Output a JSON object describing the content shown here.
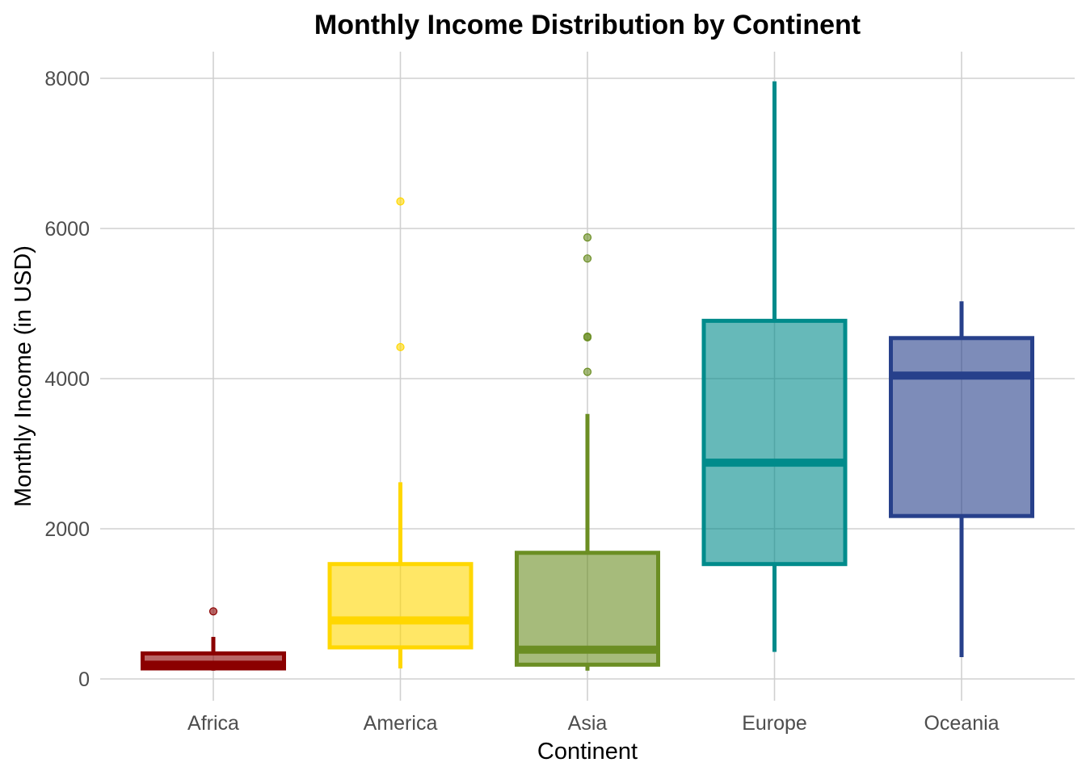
{
  "chart_data": {
    "type": "boxplot",
    "title": "Monthly Income Distribution by Continent",
    "xlabel": "Continent",
    "ylabel": "Monthly Income (in USD)",
    "ylim": [
      -250,
      8350
    ],
    "yticks": [
      0,
      2000,
      4000,
      6000,
      8000
    ],
    "grid": true,
    "legend": "none",
    "categories": [
      "Africa",
      "America",
      "Asia",
      "Europe",
      "Oceania"
    ],
    "series": [
      {
        "category": "Africa",
        "color": "#8B0000",
        "whisker_low": 110,
        "q1": 140,
        "median": 190,
        "q3": 340,
        "whisker_high": 560,
        "outliers": [
          900
        ]
      },
      {
        "category": "America",
        "color": "#FFD700",
        "whisker_low": 140,
        "q1": 420,
        "median": 780,
        "q3": 1530,
        "whisker_high": 2620,
        "outliers": [
          4420,
          6360
        ]
      },
      {
        "category": "Asia",
        "color": "#6B8E23",
        "whisker_low": 110,
        "q1": 190,
        "median": 390,
        "q3": 1680,
        "whisker_high": 3530,
        "outliers": [
          4090,
          4550,
          4560,
          5600,
          5880
        ]
      },
      {
        "category": "Europe",
        "color": "#008B8B",
        "whisker_low": 360,
        "q1": 1530,
        "median": 2880,
        "q3": 4770,
        "whisker_high": 7960,
        "outliers": []
      },
      {
        "category": "Oceania",
        "color": "#27408B",
        "whisker_low": 290,
        "q1": 2170,
        "median": 4040,
        "q3": 4540,
        "whisker_high": 5030,
        "outliers": []
      }
    ]
  }
}
